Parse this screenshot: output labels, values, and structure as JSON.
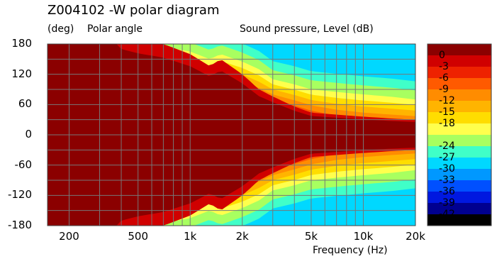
{
  "chart_data": {
    "type": "heatmap",
    "title": "Z004102 -W polar diagram",
    "ylabel_unit": "(deg)",
    "ylabel": "Polar angle",
    "colorbar_label": "Sound pressure, Level  (dB)",
    "xlabel": "Frequency  (Hz)",
    "x_scale": "log",
    "xlim": [
      150,
      20000
    ],
    "ylim": [
      -180,
      180
    ],
    "x_ticks": [
      {
        "value": 200,
        "label": "200"
      },
      {
        "value": 500,
        "label": "500"
      },
      {
        "value": 1000,
        "label": "1k"
      },
      {
        "value": 2000,
        "label": "2k"
      },
      {
        "value": 5000,
        "label": "5k"
      },
      {
        "value": 10000,
        "label": "10k"
      },
      {
        "value": 20000,
        "label": "20k"
      }
    ],
    "y_ticks": [
      {
        "value": 180,
        "label": "180"
      },
      {
        "value": 120,
        "label": "120"
      },
      {
        "value": 60,
        "label": "60"
      },
      {
        "value": 0,
        "label": "0"
      },
      {
        "value": -60,
        "label": "-60"
      },
      {
        "value": -120,
        "label": "-120"
      },
      {
        "value": -180,
        "label": "-180"
      }
    ],
    "grid": true,
    "beamwidth_half_angle_deg": {
      "frequencies_hz": [
        150,
        200,
        300,
        400,
        500,
        700,
        1000,
        1300,
        1500,
        2000,
        2500,
        3000,
        4000,
        5000,
        7000,
        10000,
        15000,
        20000
      ],
      "minus6dB": [
        170,
        160,
        130,
        100,
        95,
        90,
        80,
        68,
        75,
        60,
        45,
        38,
        28,
        22,
        20,
        18,
        16,
        15
      ],
      "minus12dB": [
        180,
        180,
        160,
        130,
        125,
        120,
        110,
        95,
        105,
        95,
        80,
        70,
        58,
        48,
        38,
        32,
        28,
        26
      ],
      "minus24dB": [
        180,
        180,
        180,
        180,
        180,
        175,
        165,
        150,
        160,
        145,
        130,
        110,
        100,
        90,
        85,
        80,
        75,
        70
      ]
    },
    "colorbar": {
      "levels": [
        {
          "label": "0",
          "color": "#8b0000"
        },
        {
          "label": "-3",
          "color": "#d00000"
        },
        {
          "label": "-6",
          "color": "#ee2200"
        },
        {
          "label": "-9",
          "color": "#ff5a00"
        },
        {
          "label": "-12",
          "color": "#ff8c00"
        },
        {
          "label": "-15",
          "color": "#ffb400"
        },
        {
          "label": "-18",
          "color": "#ffdd00"
        },
        {
          "label": "",
          "color": "#ffff4d"
        },
        {
          "label": "-24",
          "color": "#a8ff60"
        },
        {
          "label": "-27",
          "color": "#40ffc8"
        },
        {
          "label": "-30",
          "color": "#00d8ff"
        },
        {
          "label": "-33",
          "color": "#0098ff"
        },
        {
          "label": "-36",
          "color": "#0050ff"
        },
        {
          "label": "-39",
          "color": "#0018e0"
        },
        {
          "label": "-42",
          "color": "#000090"
        },
        {
          "label": "",
          "color": "#000000"
        }
      ]
    }
  }
}
